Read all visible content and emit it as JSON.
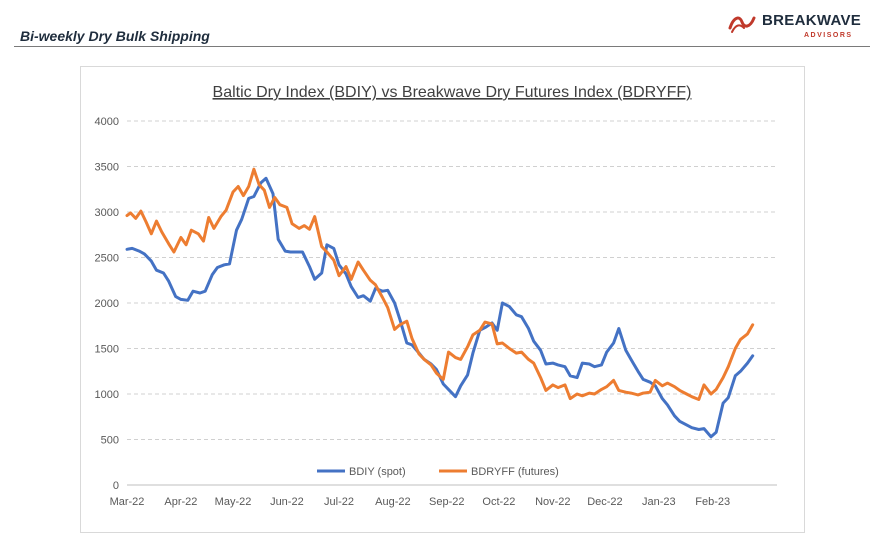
{
  "header": {
    "title": "Bi-weekly Dry Bulk Shipping",
    "logo_name": "BREAKWAVE",
    "logo_sub": "ADVISORS",
    "logo_icon": "wave-logo-icon"
  },
  "colors": {
    "bdiy": "#4472C4",
    "bdryff": "#ED7D31",
    "grid": "#d0d0d0",
    "axis_text": "#595959",
    "brand_red": "#c0392b"
  },
  "chart_data": {
    "type": "line",
    "title": "Baltic Dry Index (BDIY) vs Breakwave Dry Futures Index (BDRYFF)",
    "xlabel": "",
    "ylabel": "",
    "ylim": [
      0,
      4000
    ],
    "yticks": [
      0,
      500,
      1000,
      1500,
      2000,
      2500,
      3000,
      3500,
      4000
    ],
    "x_tick_labels": [
      "Mar-22",
      "Apr-22",
      "May-22",
      "Jun-22",
      "Jul-22",
      "Aug-22",
      "Sep-22",
      "Oct-22",
      "Nov-22",
      "Dec-22",
      "Jan-23",
      "Feb-23"
    ],
    "x_tick_dates": [
      "2022-03-01",
      "2022-04-01",
      "2022-05-01",
      "2022-06-01",
      "2022-07-01",
      "2022-08-01",
      "2022-09-01",
      "2022-10-01",
      "2022-11-01",
      "2022-12-01",
      "2023-01-01",
      "2023-02-01"
    ],
    "xlim": [
      "2022-03-01",
      "2023-03-10"
    ],
    "grid": true,
    "legend_position": "bottom",
    "series": [
      {
        "name": "BDIY (spot)",
        "color": "#4472C4",
        "points": [
          [
            "2022-03-01",
            2590
          ],
          [
            "2022-03-04",
            2600
          ],
          [
            "2022-03-08",
            2570
          ],
          [
            "2022-03-11",
            2540
          ],
          [
            "2022-03-15",
            2460
          ],
          [
            "2022-03-18",
            2360
          ],
          [
            "2022-03-22",
            2330
          ],
          [
            "2022-03-25",
            2240
          ],
          [
            "2022-03-29",
            2070
          ],
          [
            "2022-04-01",
            2040
          ],
          [
            "2022-04-05",
            2030
          ],
          [
            "2022-04-08",
            2130
          ],
          [
            "2022-04-12",
            2110
          ],
          [
            "2022-04-15",
            2130
          ],
          [
            "2022-04-19",
            2310
          ],
          [
            "2022-04-22",
            2390
          ],
          [
            "2022-04-26",
            2420
          ],
          [
            "2022-04-29",
            2430
          ],
          [
            "2022-05-03",
            2800
          ],
          [
            "2022-05-06",
            2920
          ],
          [
            "2022-05-10",
            3150
          ],
          [
            "2022-05-13",
            3170
          ],
          [
            "2022-05-17",
            3320
          ],
          [
            "2022-05-20",
            3370
          ],
          [
            "2022-05-24",
            3200
          ],
          [
            "2022-05-27",
            2700
          ],
          [
            "2022-05-31",
            2570
          ],
          [
            "2022-06-03",
            2560
          ],
          [
            "2022-06-07",
            2560
          ],
          [
            "2022-06-10",
            2560
          ],
          [
            "2022-06-14",
            2400
          ],
          [
            "2022-06-17",
            2260
          ],
          [
            "2022-06-21",
            2330
          ],
          [
            "2022-06-24",
            2640
          ],
          [
            "2022-06-28",
            2600
          ],
          [
            "2022-07-01",
            2420
          ],
          [
            "2022-07-05",
            2320
          ],
          [
            "2022-07-08",
            2180
          ],
          [
            "2022-07-12",
            2060
          ],
          [
            "2022-07-15",
            2080
          ],
          [
            "2022-07-19",
            2020
          ],
          [
            "2022-07-22",
            2160
          ],
          [
            "2022-07-26",
            2130
          ],
          [
            "2022-07-29",
            2140
          ],
          [
            "2022-08-02",
            2000
          ],
          [
            "2022-08-05",
            1820
          ],
          [
            "2022-08-09",
            1560
          ],
          [
            "2022-08-12",
            1540
          ],
          [
            "2022-08-16",
            1450
          ],
          [
            "2022-08-19",
            1380
          ],
          [
            "2022-08-23",
            1330
          ],
          [
            "2022-08-26",
            1270
          ],
          [
            "2022-08-30",
            1110
          ],
          [
            "2022-09-02",
            1050
          ],
          [
            "2022-09-06",
            970
          ],
          [
            "2022-09-09",
            1090
          ],
          [
            "2022-09-13",
            1210
          ],
          [
            "2022-09-16",
            1450
          ],
          [
            "2022-09-20",
            1700
          ],
          [
            "2022-09-23",
            1730
          ],
          [
            "2022-09-27",
            1780
          ],
          [
            "2022-09-30",
            1700
          ],
          [
            "2022-10-03",
            2000
          ],
          [
            "2022-10-07",
            1960
          ],
          [
            "2022-10-11",
            1870
          ],
          [
            "2022-10-14",
            1850
          ],
          [
            "2022-10-18",
            1720
          ],
          [
            "2022-10-21",
            1580
          ],
          [
            "2022-10-25",
            1480
          ],
          [
            "2022-10-28",
            1330
          ],
          [
            "2022-11-01",
            1340
          ],
          [
            "2022-11-04",
            1320
          ],
          [
            "2022-11-08",
            1300
          ],
          [
            "2022-11-11",
            1200
          ],
          [
            "2022-11-15",
            1180
          ],
          [
            "2022-11-18",
            1340
          ],
          [
            "2022-11-22",
            1330
          ],
          [
            "2022-11-25",
            1300
          ],
          [
            "2022-11-29",
            1320
          ],
          [
            "2022-12-02",
            1460
          ],
          [
            "2022-12-06",
            1560
          ],
          [
            "2022-12-09",
            1720
          ],
          [
            "2022-12-13",
            1480
          ],
          [
            "2022-12-16",
            1380
          ],
          [
            "2022-12-20",
            1250
          ],
          [
            "2022-12-23",
            1160
          ],
          [
            "2022-12-27",
            1130
          ],
          [
            "2022-12-30",
            1090
          ],
          [
            "2023-01-03",
            950
          ],
          [
            "2023-01-06",
            880
          ],
          [
            "2023-01-10",
            760
          ],
          [
            "2023-01-13",
            700
          ],
          [
            "2023-01-17",
            660
          ],
          [
            "2023-01-20",
            630
          ],
          [
            "2023-01-24",
            610
          ],
          [
            "2023-01-27",
            620
          ],
          [
            "2023-01-31",
            530
          ],
          [
            "2023-02-03",
            580
          ],
          [
            "2023-02-07",
            900
          ],
          [
            "2023-02-10",
            960
          ],
          [
            "2023-02-14",
            1200
          ],
          [
            "2023-02-17",
            1250
          ],
          [
            "2023-02-21",
            1340
          ],
          [
            "2023-02-24",
            1420
          ]
        ]
      },
      {
        "name": "BDRYFF (futures)",
        "color": "#ED7D31",
        "points": [
          [
            "2022-03-01",
            2960
          ],
          [
            "2022-03-03",
            2990
          ],
          [
            "2022-03-06",
            2930
          ],
          [
            "2022-03-09",
            3010
          ],
          [
            "2022-03-12",
            2890
          ],
          [
            "2022-03-15",
            2760
          ],
          [
            "2022-03-18",
            2900
          ],
          [
            "2022-03-21",
            2780
          ],
          [
            "2022-03-25",
            2650
          ],
          [
            "2022-03-28",
            2560
          ],
          [
            "2022-04-01",
            2720
          ],
          [
            "2022-04-04",
            2640
          ],
          [
            "2022-04-07",
            2800
          ],
          [
            "2022-04-11",
            2760
          ],
          [
            "2022-04-14",
            2680
          ],
          [
            "2022-04-17",
            2940
          ],
          [
            "2022-04-20",
            2820
          ],
          [
            "2022-04-24",
            2950
          ],
          [
            "2022-04-27",
            3020
          ],
          [
            "2022-05-01",
            3220
          ],
          [
            "2022-05-04",
            3280
          ],
          [
            "2022-05-07",
            3180
          ],
          [
            "2022-05-10",
            3280
          ],
          [
            "2022-05-13",
            3470
          ],
          [
            "2022-05-16",
            3300
          ],
          [
            "2022-05-19",
            3240
          ],
          [
            "2022-05-22",
            3050
          ],
          [
            "2022-05-25",
            3160
          ],
          [
            "2022-05-28",
            3080
          ],
          [
            "2022-06-01",
            3050
          ],
          [
            "2022-06-04",
            2870
          ],
          [
            "2022-06-08",
            2820
          ],
          [
            "2022-06-11",
            2850
          ],
          [
            "2022-06-14",
            2810
          ],
          [
            "2022-06-17",
            2950
          ],
          [
            "2022-06-21",
            2620
          ],
          [
            "2022-06-24",
            2560
          ],
          [
            "2022-06-28",
            2470
          ],
          [
            "2022-07-01",
            2300
          ],
          [
            "2022-07-05",
            2400
          ],
          [
            "2022-07-08",
            2260
          ],
          [
            "2022-07-12",
            2450
          ],
          [
            "2022-07-15",
            2360
          ],
          [
            "2022-07-19",
            2250
          ],
          [
            "2022-07-22",
            2200
          ],
          [
            "2022-07-26",
            2060
          ],
          [
            "2022-07-29",
            1950
          ],
          [
            "2022-08-02",
            1710
          ],
          [
            "2022-08-05",
            1760
          ],
          [
            "2022-08-09",
            1800
          ],
          [
            "2022-08-12",
            1610
          ],
          [
            "2022-08-16",
            1440
          ],
          [
            "2022-08-19",
            1380
          ],
          [
            "2022-08-23",
            1320
          ],
          [
            "2022-08-26",
            1230
          ],
          [
            "2022-08-30",
            1160
          ],
          [
            "2022-09-02",
            1460
          ],
          [
            "2022-09-06",
            1400
          ],
          [
            "2022-09-09",
            1380
          ],
          [
            "2022-09-13",
            1520
          ],
          [
            "2022-09-16",
            1650
          ],
          [
            "2022-09-20",
            1700
          ],
          [
            "2022-09-23",
            1790
          ],
          [
            "2022-09-27",
            1770
          ],
          [
            "2022-09-30",
            1550
          ],
          [
            "2022-10-03",
            1560
          ],
          [
            "2022-10-07",
            1500
          ],
          [
            "2022-10-11",
            1450
          ],
          [
            "2022-10-14",
            1460
          ],
          [
            "2022-10-18",
            1380
          ],
          [
            "2022-10-21",
            1340
          ],
          [
            "2022-10-25",
            1180
          ],
          [
            "2022-10-28",
            1040
          ],
          [
            "2022-11-01",
            1100
          ],
          [
            "2022-11-04",
            1070
          ],
          [
            "2022-11-08",
            1100
          ],
          [
            "2022-11-11",
            950
          ],
          [
            "2022-11-15",
            1000
          ],
          [
            "2022-11-18",
            980
          ],
          [
            "2022-11-22",
            1010
          ],
          [
            "2022-11-25",
            1000
          ],
          [
            "2022-11-29",
            1050
          ],
          [
            "2022-12-02",
            1080
          ],
          [
            "2022-12-06",
            1150
          ],
          [
            "2022-12-09",
            1040
          ],
          [
            "2022-12-13",
            1020
          ],
          [
            "2022-12-16",
            1010
          ],
          [
            "2022-12-20",
            990
          ],
          [
            "2022-12-23",
            1010
          ],
          [
            "2022-12-27",
            1020
          ],
          [
            "2022-12-30",
            1150
          ],
          [
            "2023-01-03",
            1090
          ],
          [
            "2023-01-06",
            1120
          ],
          [
            "2023-01-10",
            1080
          ],
          [
            "2023-01-13",
            1040
          ],
          [
            "2023-01-17",
            1000
          ],
          [
            "2023-01-20",
            970
          ],
          [
            "2023-01-24",
            940
          ],
          [
            "2023-01-27",
            1100
          ],
          [
            "2023-01-31",
            1000
          ],
          [
            "2023-02-03",
            1050
          ],
          [
            "2023-02-07",
            1180
          ],
          [
            "2023-02-10",
            1300
          ],
          [
            "2023-02-14",
            1500
          ],
          [
            "2023-02-17",
            1600
          ],
          [
            "2023-02-21",
            1660
          ],
          [
            "2023-02-24",
            1760
          ]
        ]
      }
    ]
  }
}
